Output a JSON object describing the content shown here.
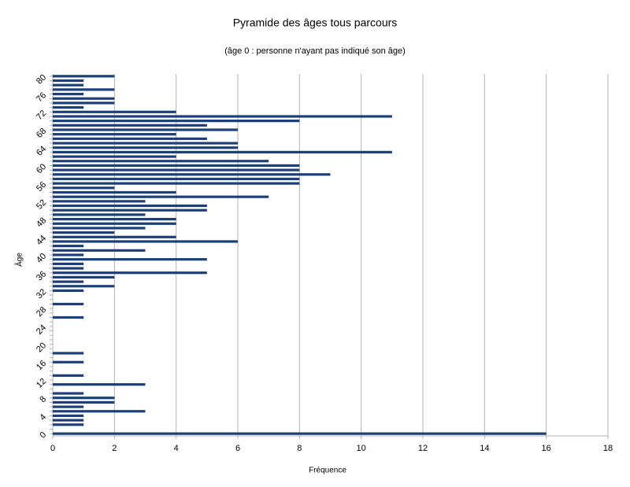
{
  "chart_data": {
    "type": "barh",
    "title": "Pyramide des âges tous parcours",
    "subtitle": "(âge 0 : personne n'ayant pas indiqué son âge)",
    "xlabel": "Fréquence",
    "ylabel": "Âge",
    "categories": [
      0,
      null,
      null,
      null,
      4,
      null,
      null,
      null,
      8,
      null,
      null,
      null,
      12,
      null,
      null,
      null,
      16,
      null,
      null,
      null,
      20,
      null,
      null,
      null,
      24,
      null,
      null,
      null,
      28,
      null,
      null,
      null,
      32,
      null,
      null,
      null,
      36,
      null,
      null,
      null,
      40,
      null,
      null,
      null,
      44,
      null,
      null,
      null,
      48,
      null,
      null,
      null,
      52,
      null,
      null,
      null,
      56,
      null,
      null,
      null,
      60,
      null,
      null,
      null,
      64,
      null,
      null,
      null,
      68,
      null,
      null,
      null,
      72,
      null,
      null,
      null,
      76,
      null,
      null,
      null,
      80
    ],
    "values": [
      16,
      0,
      1,
      1,
      1,
      3,
      1,
      2,
      2,
      1,
      0,
      3,
      0,
      1,
      0,
      0,
      1,
      0,
      1,
      0,
      0,
      0,
      0,
      0,
      0,
      0,
      1,
      0,
      0,
      1,
      0,
      0,
      1,
      2,
      1,
      2,
      5,
      1,
      1,
      5,
      1,
      3,
      1,
      6,
      4,
      2,
      3,
      4,
      4,
      3,
      5,
      5,
      3,
      7,
      4,
      2,
      8,
      8,
      9,
      8,
      8,
      7,
      4,
      11,
      6,
      6,
      5,
      4,
      6,
      5,
      8,
      11,
      4,
      1,
      2,
      2,
      1,
      2,
      1,
      1,
      2
    ],
    "color": "#1c3f78",
    "xlim": [
      0,
      18
    ],
    "xticks": [
      0,
      2,
      4,
      6,
      8,
      10,
      12,
      14,
      16,
      18
    ],
    "grid": true
  }
}
